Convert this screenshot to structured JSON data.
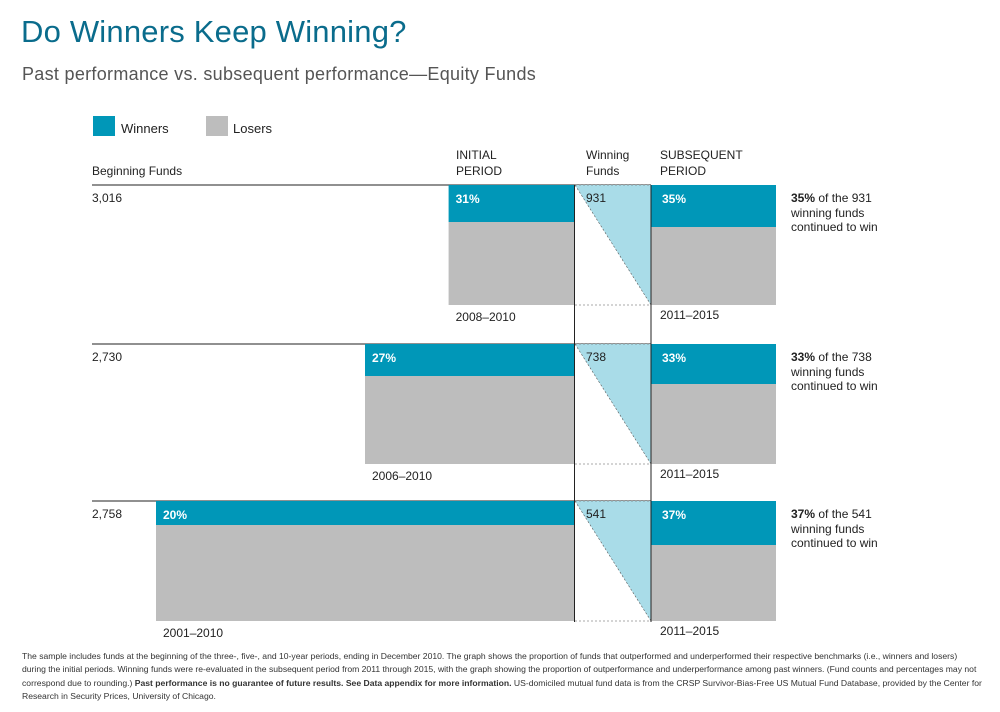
{
  "title": "Do Winners Keep Winning?",
  "subtitle": "Past performance vs. subsequent performance—Equity Funds",
  "legend": {
    "winners": "Winners",
    "losers": "Losers"
  },
  "colors": {
    "winners": "#0097b8",
    "losers": "#bdbdbd",
    "link": "#a9dce8",
    "title": "#0a6c8c"
  },
  "headers": {
    "beginning": "Beginning Funds",
    "initial_1": "INITIAL",
    "initial_2": "PERIOD",
    "winning_1": "Winning",
    "winning_2": "Funds",
    "subsequent_1": "SUBSEQUENT",
    "subsequent_2": "PERIOD"
  },
  "chart_data": {
    "type": "bar",
    "title": "Do Winners Keep Winning?",
    "series": [
      {
        "name": "Winners"
      },
      {
        "name": "Losers"
      }
    ],
    "rows": [
      {
        "beginning_funds": "3,016",
        "initial_pct": 31,
        "initial_label": "31%",
        "initial_period": "2008–2010",
        "initial_years": 3,
        "winning_funds": "931",
        "subsequent_pct": 35,
        "subsequent_label": "35%",
        "subsequent_period": "2011–2015",
        "note_pct": "35%",
        "note_line1": " of the 931",
        "note_line2": "winning funds",
        "note_line3": "continued to win"
      },
      {
        "beginning_funds": "2,730",
        "initial_pct": 27,
        "initial_label": "27%",
        "initial_period": "2006–2010",
        "initial_years": 5,
        "winning_funds": "738",
        "subsequent_pct": 33,
        "subsequent_label": "33%",
        "subsequent_period": "2011–2015",
        "note_pct": "33%",
        "note_line1": " of the 738",
        "note_line2": "winning funds",
        "note_line3": "continued to win"
      },
      {
        "beginning_funds": "2,758",
        "initial_pct": 20,
        "initial_label": "20%",
        "initial_period": "2001–2010",
        "initial_years": 10,
        "winning_funds": "541",
        "subsequent_pct": 37,
        "subsequent_label": "37%",
        "subsequent_period": "2011–2015",
        "note_pct": "37%",
        "note_line1": " of the 541",
        "note_line2": "winning funds",
        "note_line3": "continued to win"
      }
    ]
  },
  "footnote": {
    "part1": "The sample includes funds at the beginning of the three-, five-, and 10-year periods, ending in December 2010. The graph shows the proportion of funds that outperformed and underperformed their respective benchmarks (i.e., winners and losers) during the initial periods. Winning funds were re-evaluated in the subsequent period from 2011 through 2015, with the graph showing the proportion of outperformance and underperformance among past winners. (Fund counts and percentages may not correspond due to rounding.) ",
    "bold": "Past performance is no guarantee of future results. See Data appendix for more information.",
    "part2": " US-domiciled mutual fund data is from the CRSP Survivor-Bias-Free US Mutual Fund Database, provided by the Center for Research in Security Prices, University of Chicago."
  }
}
